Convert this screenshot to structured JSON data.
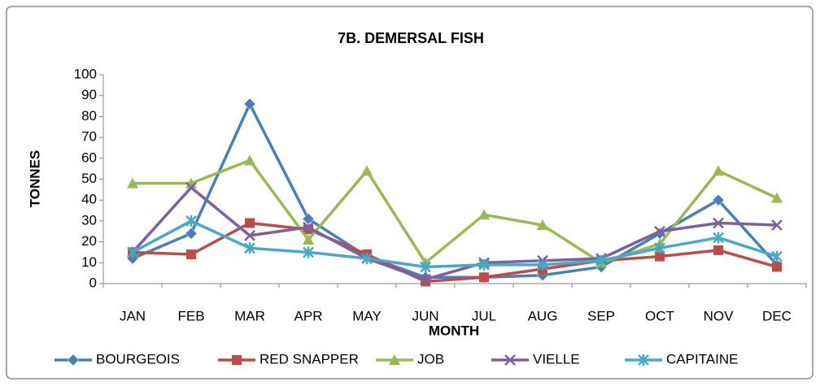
{
  "chart_data": {
    "type": "line",
    "title": "7B. DEMERSAL FISH",
    "x_label": "MONTH",
    "y_label": "TONNES",
    "categories": [
      "JAN",
      "FEB",
      "MAR",
      "APR",
      "MAY",
      "JUN",
      "JUL",
      "AUG",
      "SEP",
      "OCT",
      "NOV",
      "DEC"
    ],
    "series": [
      {
        "name": "BOURGEOIS",
        "color": "#4a7ebb",
        "values": [
          12,
          24,
          86,
          31,
          13,
          3,
          3,
          4,
          8,
          24,
          40,
          9
        ]
      },
      {
        "name": "RED SNAPPER",
        "color": "#be4b48",
        "values": [
          15,
          14,
          29,
          26,
          14,
          1,
          3,
          7,
          11,
          13,
          16,
          8
        ]
      },
      {
        "name": "JOB",
        "color": "#98b954",
        "values": [
          48,
          48,
          59,
          21,
          54,
          10,
          33,
          28,
          10,
          19,
          54,
          41
        ]
      },
      {
        "name": "VIELLE",
        "color": "#7d60a0",
        "values": [
          15,
          46,
          23,
          27,
          12,
          2,
          10,
          11,
          12,
          25,
          29,
          28
        ]
      },
      {
        "name": "CAPITAINE",
        "color": "#46aac5",
        "values": [
          15,
          30,
          17,
          15,
          12,
          8,
          9,
          9,
          11,
          17,
          22,
          13
        ]
      }
    ],
    "ylim": [
      0,
      100
    ],
    "yticks": [
      0,
      10,
      20,
      30,
      40,
      50,
      60,
      70,
      80,
      90,
      100
    ],
    "grid": false,
    "legend": "bottom"
  }
}
